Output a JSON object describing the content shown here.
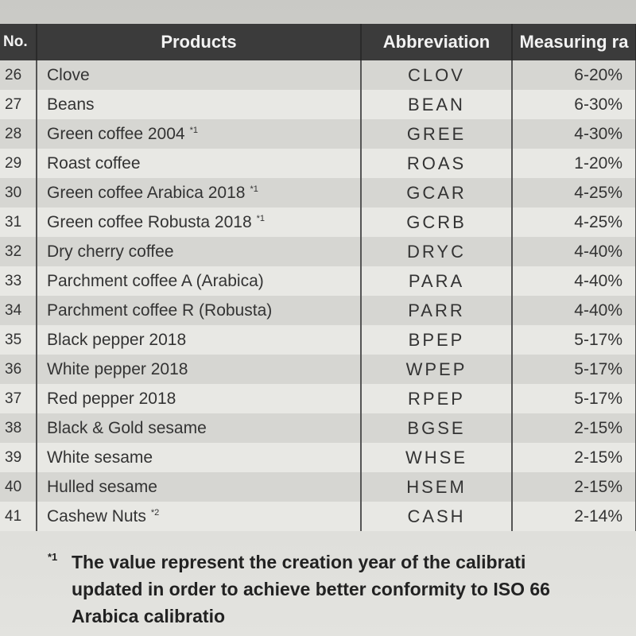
{
  "table": {
    "header": [
      "No.",
      "Products",
      "Abbreviation",
      "Measuring ra"
    ],
    "rows": [
      {
        "no": "26",
        "product": "Clove",
        "abbr": "CLOV",
        "range": "6-20%"
      },
      {
        "no": "27",
        "product": "Beans",
        "abbr": "BEAN",
        "range": "6-30%"
      },
      {
        "no": "28",
        "product": "Green coffee 2004",
        "note": "*1",
        "abbr": "GREE",
        "range": "4-30%"
      },
      {
        "no": "29",
        "product": "Roast coffee",
        "abbr": "ROAS",
        "range": "1-20%"
      },
      {
        "no": "30",
        "product": "Green coffee Arabica 2018",
        "note": "*1",
        "abbr": "GCAR",
        "range": "4-25%"
      },
      {
        "no": "31",
        "product": "Green coffee Robusta 2018",
        "note": "*1",
        "abbr": "GCRB",
        "range": "4-25%"
      },
      {
        "no": "32",
        "product": "Dry cherry coffee",
        "abbr": "DRYC",
        "range": "4-40%"
      },
      {
        "no": "33",
        "product": "Parchment coffee A (Arabica)",
        "abbr": "PARA",
        "range": "4-40%"
      },
      {
        "no": "34",
        "product": "Parchment coffee R (Robusta)",
        "abbr": "PARR",
        "range": "4-40%"
      },
      {
        "no": "35",
        "product": "Black pepper 2018",
        "abbr": "BPEP",
        "range": "5-17%"
      },
      {
        "no": "36",
        "product": "White pepper 2018",
        "abbr": "WPEP",
        "range": "5-17%"
      },
      {
        "no": "37",
        "product": "Red pepper 2018",
        "abbr": "RPEP",
        "range": "5-17%"
      },
      {
        "no": "38",
        "product": "Black & Gold sesame",
        "abbr": "BGSE",
        "range": "2-15%"
      },
      {
        "no": "39",
        "product": "White sesame",
        "abbr": "WHSE",
        "range": "2-15%"
      },
      {
        "no": "40",
        "product": "Hulled sesame",
        "abbr": "HSEM",
        "range": "2-15%"
      },
      {
        "no": "41",
        "product": "Cashew Nuts",
        "note": "*2",
        "abbr": "CASH",
        "range": "2-14%"
      }
    ]
  },
  "footnote": {
    "mark": "*1",
    "lines": [
      "The value represent the creation year of the calibrati",
      "updated in order to achieve better conformity to ISO 66",
      "Arabica calibratio"
    ]
  }
}
